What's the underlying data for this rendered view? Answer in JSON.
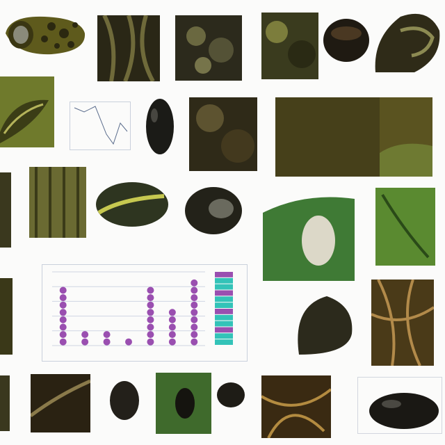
{
  "colors": {
    "background": "#fbfbfa",
    "olive": "#5c5a1e",
    "moss": "#7d8a3a",
    "dark": "#1d1a12",
    "leaf_green": "#3f7a35",
    "chart_purple": "#9a4fb0",
    "chart_teal": "#33c3b8",
    "chart_grid": "#cfd6e3"
  },
  "icons": [
    "textured-shell-icon",
    "round-seed-icon",
    "leaf-specimen-icon",
    "dark-bean-icon",
    "root-tangle-icon"
  ],
  "chart_data": {
    "type": "scatter",
    "categories": [
      "",
      "",
      "",
      "",
      "",
      "",
      ""
    ],
    "series": [
      {
        "values": [
          8,
          2,
          2,
          1,
          8,
          5,
          9
        ]
      }
    ],
    "ylim": [
      0,
      10
    ],
    "grid": true,
    "legend": "none"
  }
}
